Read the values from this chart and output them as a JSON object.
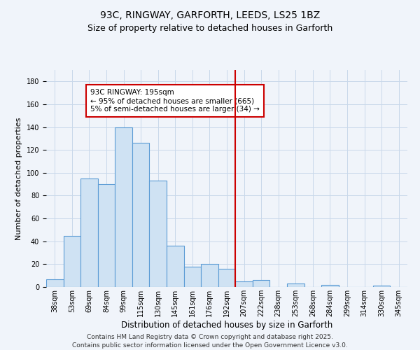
{
  "title": "93C, RINGWAY, GARFORTH, LEEDS, LS25 1BZ",
  "subtitle": "Size of property relative to detached houses in Garforth",
  "xlabel": "Distribution of detached houses by size in Garforth",
  "ylabel": "Number of detached properties",
  "categories": [
    "38sqm",
    "53sqm",
    "69sqm",
    "84sqm",
    "99sqm",
    "115sqm",
    "130sqm",
    "145sqm",
    "161sqm",
    "176sqm",
    "192sqm",
    "207sqm",
    "222sqm",
    "238sqm",
    "253sqm",
    "268sqm",
    "284sqm",
    "299sqm",
    "314sqm",
    "330sqm",
    "345sqm"
  ],
  "values": [
    7,
    45,
    95,
    90,
    140,
    126,
    93,
    36,
    18,
    20,
    16,
    5,
    6,
    0,
    3,
    0,
    2,
    0,
    0,
    1,
    0
  ],
  "bar_color": "#cfe2f3",
  "bar_edge_color": "#5b9bd5",
  "vline_x_index": 10.5,
  "vline_color": "#cc0000",
  "annotation_text": "93C RINGWAY: 195sqm\n← 95% of detached houses are smaller (665)\n5% of semi-detached houses are larger (34) →",
  "annotation_box_color": "#ffffff",
  "annotation_box_edge": "#cc0000",
  "ylim": [
    0,
    190
  ],
  "yticks": [
    0,
    20,
    40,
    60,
    80,
    100,
    120,
    140,
    160,
    180
  ],
  "footer_line1": "Contains HM Land Registry data © Crown copyright and database right 2025.",
  "footer_line2": "Contains public sector information licensed under the Open Government Licence v3.0.",
  "bg_color": "#f0f4fa",
  "grid_color": "#c8d8ea",
  "title_fontsize": 10,
  "subtitle_fontsize": 9,
  "xlabel_fontsize": 8.5,
  "ylabel_fontsize": 8,
  "tick_fontsize": 7,
  "annotation_fontsize": 7.5,
  "footer_fontsize": 6.5
}
